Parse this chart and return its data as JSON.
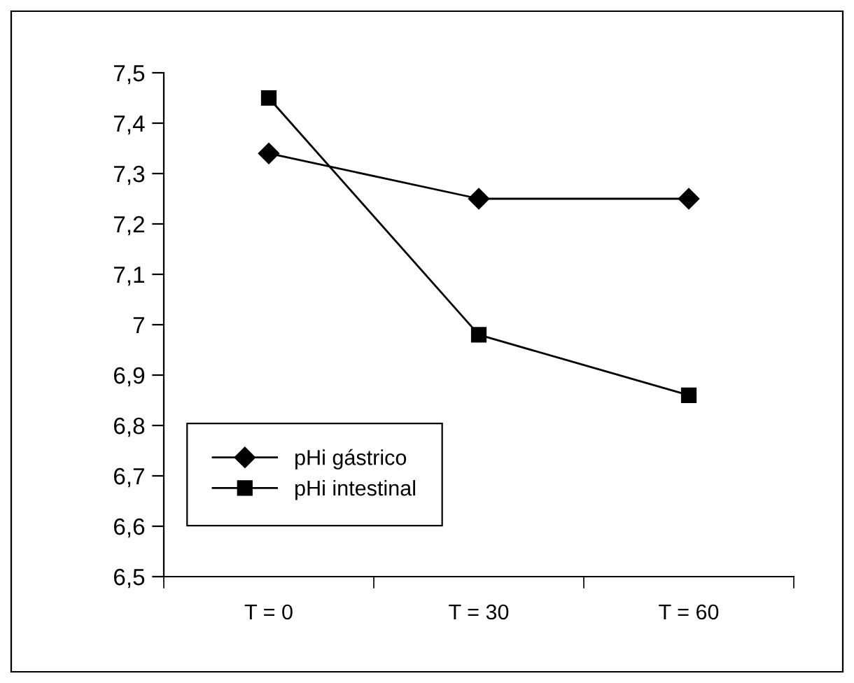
{
  "chart_data": {
    "type": "line",
    "categories": [
      "T = 0",
      "T = 30",
      "T = 60"
    ],
    "series": [
      {
        "name": "pHi gástrico",
        "color": "#000000",
        "marker": "diamond",
        "values": [
          7.34,
          7.25,
          7.25
        ]
      },
      {
        "name": "pHi intestinal",
        "color": "#000000",
        "marker": "square",
        "values": [
          7.45,
          6.98,
          6.86
        ]
      }
    ],
    "ylim": [
      6.5,
      7.5
    ],
    "yticks": [
      {
        "value": 6.5,
        "label": "6,5"
      },
      {
        "value": 6.6,
        "label": "6,6"
      },
      {
        "value": 6.7,
        "label": "6,7"
      },
      {
        "value": 6.8,
        "label": "6,8"
      },
      {
        "value": 6.9,
        "label": "6,9"
      },
      {
        "value": 7,
        "label": "7"
      },
      {
        "value": 7.1,
        "label": "7,1"
      },
      {
        "value": 7.2,
        "label": "7,2"
      },
      {
        "value": 7.3,
        "label": "7,3"
      },
      {
        "value": 7.4,
        "label": "7,4"
      },
      {
        "value": 7.5,
        "label": "7,5"
      }
    ],
    "grid": false,
    "legend": "bottom left",
    "line_style": "solid"
  }
}
